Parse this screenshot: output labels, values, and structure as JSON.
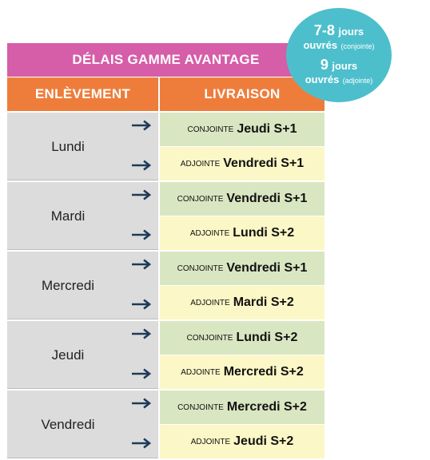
{
  "title": "DÉLAIS GAMME AVANTAGE",
  "headers": {
    "pickup": "ENLÈVEMENT",
    "delivery": "LIVRAISON"
  },
  "badge": {
    "conjointe_days": "7-8",
    "conjointe_unit": "jours",
    "conjointe_word": "ouvrés",
    "conjointe_kind": "(conjointe)",
    "adjointe_days": "9",
    "adjointe_unit": "jours",
    "adjointe_word": "ouvrés",
    "adjointe_kind": "(adjointe)"
  },
  "rows": [
    {
      "day": "Lundi",
      "conj_kind": "CONJOINTE",
      "conj_day": "Jeudi S+1",
      "adj_kind": "ADJOINTE",
      "adj_day": "Vendredi S+1"
    },
    {
      "day": "Mardi",
      "conj_kind": "CONJOINTE",
      "conj_day": "Vendredi S+1",
      "adj_kind": "ADJOINTE",
      "adj_day": "Lundi S+2"
    },
    {
      "day": "Mercredi",
      "conj_kind": "CONJOINTE",
      "conj_day": "Vendredi S+1",
      "adj_kind": "ADJOINTE",
      "adj_day": "Mardi S+2"
    },
    {
      "day": "Jeudi",
      "conj_kind": "CONJOINTE",
      "conj_day": "Lundi S+2",
      "adj_kind": "ADJOINTE",
      "adj_day": "Mercredi S+2"
    },
    {
      "day": "Vendredi",
      "conj_kind": "CONJOINTE",
      "conj_day": "Mercredi S+2",
      "adj_kind": "ADJOINTE",
      "adj_day": "Jeudi S+2"
    }
  ],
  "colors": {
    "title": "#d65da8",
    "header": "#ee7d3b",
    "badge": "#4dbfcc",
    "conjointe": "#d9e6c2",
    "adjointe": "#fbf7c6",
    "pickup": "#dcdcdc",
    "arrow": "#1f3b57"
  }
}
